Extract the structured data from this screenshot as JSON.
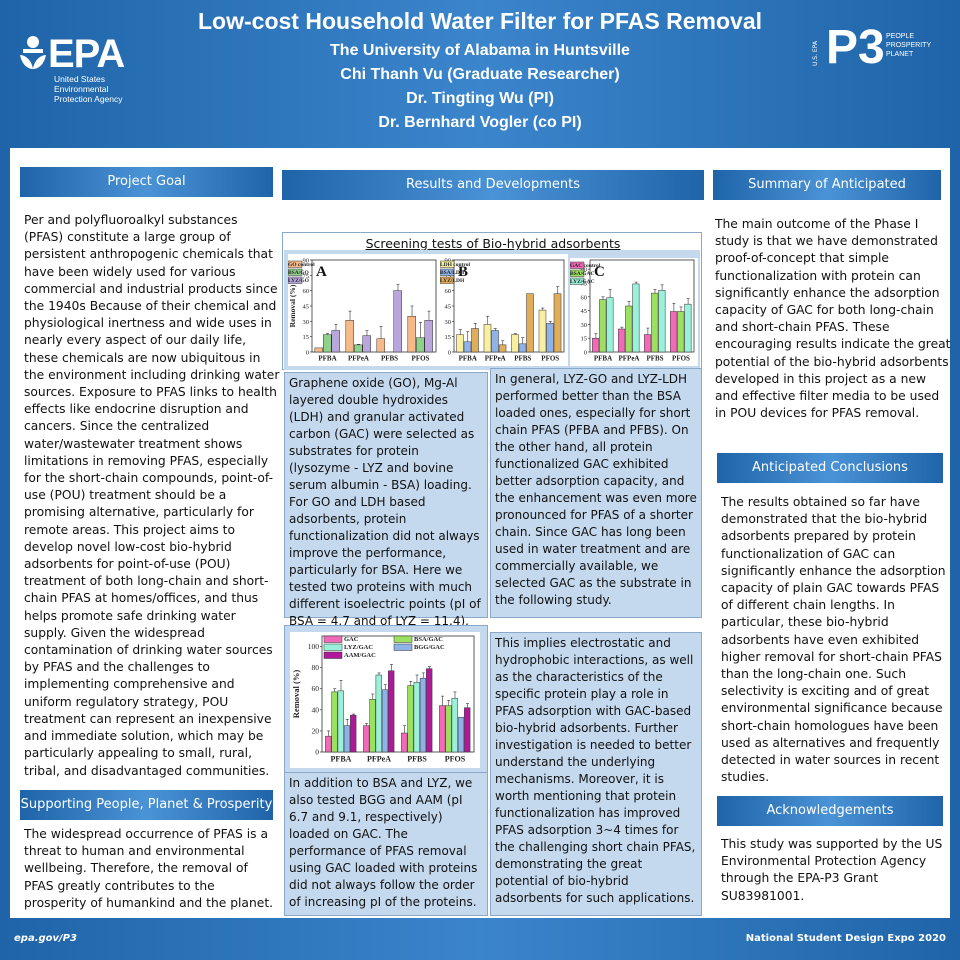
{
  "header": {
    "title": "Low-cost Household Water Filter for PFAS Removal",
    "lines": [
      "The University of Alabama in Huntsville",
      "Chi Thanh Vu (Graduate Researcher)",
      "Dr. Tingting Wu (PI)",
      "Dr. Bernhard Vogler (co PI)"
    ],
    "epa_logo": {
      "mark": "EPA",
      "sub": [
        "United States",
        "Environmental",
        "Protection Agency"
      ]
    },
    "p3_logo": {
      "mark": "P3",
      "side": "U.S. EPA",
      "words": [
        "PEOPLE",
        "PROSPERITY",
        "PLANET"
      ]
    }
  },
  "left": {
    "project_goal": {
      "heading": "Project Goal",
      "text": "Per and polyfluoroalkyl substances (PFAS) constitute a large group of persistent anthropogenic chemicals that have been widely used for various commercial and industrial products since the 1940s Because of their chemical and physiological inertness and wide uses in nearly every aspect of our daily life, these chemicals are now ubiquitous in the environment including drinking water sources. Exposure to PFAS links to health effects like endocrine disruption and cancers. Since the centralized water/wastewater treatment shows limitations in removing PFAS, especially for the short-chain compounds, point-of-use (POU) treatment should be a promising alternative, particularly for remote areas. This project aims to develop novel low-cost bio-hybrid adsorbents for point-of-use (POU) treatment of both long-chain and short-chain PFAS at homes/offices, and thus helps promote safe drinking water supply. Given the widespread contamination of drinking water sources by PFAS and the challenges to implementing comprehensive and uniform regulatory strategy, POU treatment can represent an inexpensive and immediate solution, which may be particularly appealing to small, rural, tribal, and disadvantaged communities."
    },
    "supporting": {
      "heading": "Supporting People, Planet & Prosperity",
      "text": "The widespread occurrence of PFAS is a threat to human and environmental wellbeing. Therefore, the removal of PFAS greatly contributes to the prosperity of humankind and the planet."
    }
  },
  "middle": {
    "heading": "Results and Developments",
    "screening_title": "Screening tests of Bio-hybrid adsorbents",
    "box1": "Graphene oxide (GO), Mg-Al layered double hydroxides (LDH) and granular activated carbon (GAC) were selected as substrates for protein (lysozyme - LYZ and bovine serum albumin - BSA) loading. For GO and LDH based adsorbents, protein functionalization did not always improve the performance, particularly for BSA. Here we tested two proteins with much different isoelectric points (pI of BSA = 4.7 and of LYZ = 11.4).",
    "box2": "In general, LYZ-GO and LYZ-LDH performed better than the BSA loaded ones, especially for short chain PFAS (PFBA and PFBS). On the other hand, all protein functionalized GAC exhibited better adsorption capacity, and the enhancement was even more pronounced for PFAS of a shorter chain. Since GAC has long been used in water treatment and are commercially available, we selected GAC as the substrate in the following study.",
    "box3": "In addition to BSA and LYZ, we also tested BGG and AAM (pI 6.7 and 9.1, respectively) loaded on GAC. The performance of PFAS removal using GAC loaded with proteins did not always follow the order of increasing pI of the proteins.",
    "box4": "This implies electrostatic and hydrophobic interactions, as well as the characteristics of the specific protein play a role in PFAS adsorption with GAC-based bio-hybrid adsorbents. Further investigation is needed to better understand the underlying mechanisms. Moreover, it is worth mentioning that protein functionalization has improved PFAS adsorption 3~4 times for the challenging short chain PFAS, demonstrating the great potential of bio-hybrid adsorbents for such applications."
  },
  "right": {
    "summary": {
      "heading": "Summary of  Anticipated Outcomes",
      "text": "The main outcome of the Phase I study is that we have demonstrated proof-of-concept that simple functionalization with protein can significantly enhance the adsorption capacity of GAC for both long-chain and short-chain PFAS. These encouraging results indicate the great potential of the bio-hybrid adsorbents developed in this project as a new and effective filter media to be used in POU devices for PFAS removal."
    },
    "conclusions": {
      "heading": "Anticipated Conclusions",
      "text": "The results obtained so far have demonstrated that the bio-hybrid adsorbents prepared by protein functionalization of GAC can significantly enhance the adsorption capacity of plain GAC towards PFAS of different chain lengths. In particular, these bio-hybrid adsorbents have even exhibited higher removal for short-chain PFAS than the long-chain one. Such selectivity is exciting and of great environmental significance because short-chain homologues have been used as alternatives and frequently detected in water sources in recent studies."
    },
    "acknowledgements": {
      "heading": "Acknowledgements",
      "text": "This study was supported by the US Environmental Protection Agency through the EPA-P3 Grant SU83981001."
    }
  },
  "footer": {
    "left": "epa.gov/P3",
    "right": "National Student Design Expo 2020"
  },
  "chart_data": [
    {
      "type": "bar",
      "panel": "A",
      "ylabel": "Removal (%)",
      "ylim": [
        0,
        90
      ],
      "yticks": [
        0,
        15,
        30,
        45,
        60,
        75,
        90
      ],
      "categories": [
        "PFBA",
        "PFPeA",
        "PFBS",
        "PFOS"
      ],
      "series": [
        {
          "name": "GO control",
          "color": "#f5b98a",
          "values": [
            4,
            31,
            13,
            35
          ],
          "err": [
            0,
            9,
            12,
            10
          ]
        },
        {
          "name": "BSA/GO",
          "color": "#8fd08a",
          "values": [
            17,
            7,
            0,
            14
          ],
          "err": [
            1,
            0.5,
            0,
            15
          ]
        },
        {
          "name": "LYZ/GO",
          "color": "#b8a6dd",
          "values": [
            21,
            16,
            60,
            31
          ],
          "err": [
            6,
            5,
            6,
            9
          ]
        }
      ]
    },
    {
      "type": "bar",
      "panel": "B",
      "ylabel": "Removal (%)",
      "ylim": [
        0,
        90
      ],
      "yticks": [
        0,
        15,
        30,
        45,
        60,
        75,
        90
      ],
      "categories": [
        "PFBA",
        "PFPeA",
        "PFBS",
        "PFOS"
      ],
      "series": [
        {
          "name": "LDH control",
          "color": "#f8f0a0",
          "values": [
            17,
            27,
            17,
            41
          ],
          "err": [
            5,
            8,
            1,
            2
          ]
        },
        {
          "name": "BSA/LDH",
          "color": "#8fb3e8",
          "values": [
            10,
            21,
            8,
            28
          ],
          "err": [
            10,
            2,
            6,
            2
          ]
        },
        {
          "name": "LYZ/LDH",
          "color": "#e0ad5a",
          "values": [
            23,
            7,
            57,
            57
          ],
          "err": [
            5,
            4,
            0,
            7
          ]
        }
      ]
    },
    {
      "type": "bar",
      "panel": "C",
      "ylabel": "",
      "ylim": [
        0,
        100
      ],
      "yticks": [
        0,
        15,
        30,
        45,
        60,
        75,
        90
      ],
      "categories": [
        "PFBA",
        "PFPeA",
        "PFBS",
        "PFOS"
      ],
      "series": [
        {
          "name": "GAC control",
          "color": "#f06ab8",
          "values": [
            15,
            25,
            19,
            44
          ],
          "err": [
            5,
            2,
            7,
            9
          ]
        },
        {
          "name": "BSA/GAC",
          "color": "#9be060",
          "values": [
            57,
            50,
            64,
            44
          ],
          "err": [
            3,
            5,
            4,
            5
          ]
        },
        {
          "name": "LYZ/GAC",
          "color": "#9af0d8",
          "values": [
            59,
            74,
            67,
            52
          ],
          "err": [
            9,
            2,
            6,
            6
          ]
        }
      ]
    },
    {
      "type": "bar",
      "panel": "GAC proteins",
      "ylabel": "Removal (%)",
      "ylim": [
        0,
        110
      ],
      "yticks": [
        0,
        20,
        40,
        60,
        80,
        100
      ],
      "categories": [
        "PFBA",
        "PFPeA",
        "PFBS",
        "PFOS"
      ],
      "series": [
        {
          "name": "GAC",
          "color": "#f06ab8",
          "values": [
            15,
            25,
            18,
            44
          ],
          "err": [
            5,
            2,
            7,
            9
          ]
        },
        {
          "name": "BSA/GAC",
          "color": "#9be060",
          "values": [
            57,
            50,
            63,
            44
          ],
          "err": [
            3,
            5,
            4,
            5
          ]
        },
        {
          "name": "LYZ/GAC",
          "color": "#9af0d8",
          "values": [
            58,
            73,
            66,
            51
          ],
          "err": [
            10,
            2,
            7,
            6
          ]
        },
        {
          "name": "BGG/GAC",
          "color": "#8fb3e8",
          "values": [
            25,
            59,
            70,
            33
          ],
          "err": [
            6,
            5,
            5,
            0
          ]
        },
        {
          "name": "AAM/GAC",
          "color": "#b0189a",
          "values": [
            35,
            77,
            79,
            42
          ],
          "err": [
            1,
            6,
            2,
            4
          ]
        }
      ]
    }
  ]
}
